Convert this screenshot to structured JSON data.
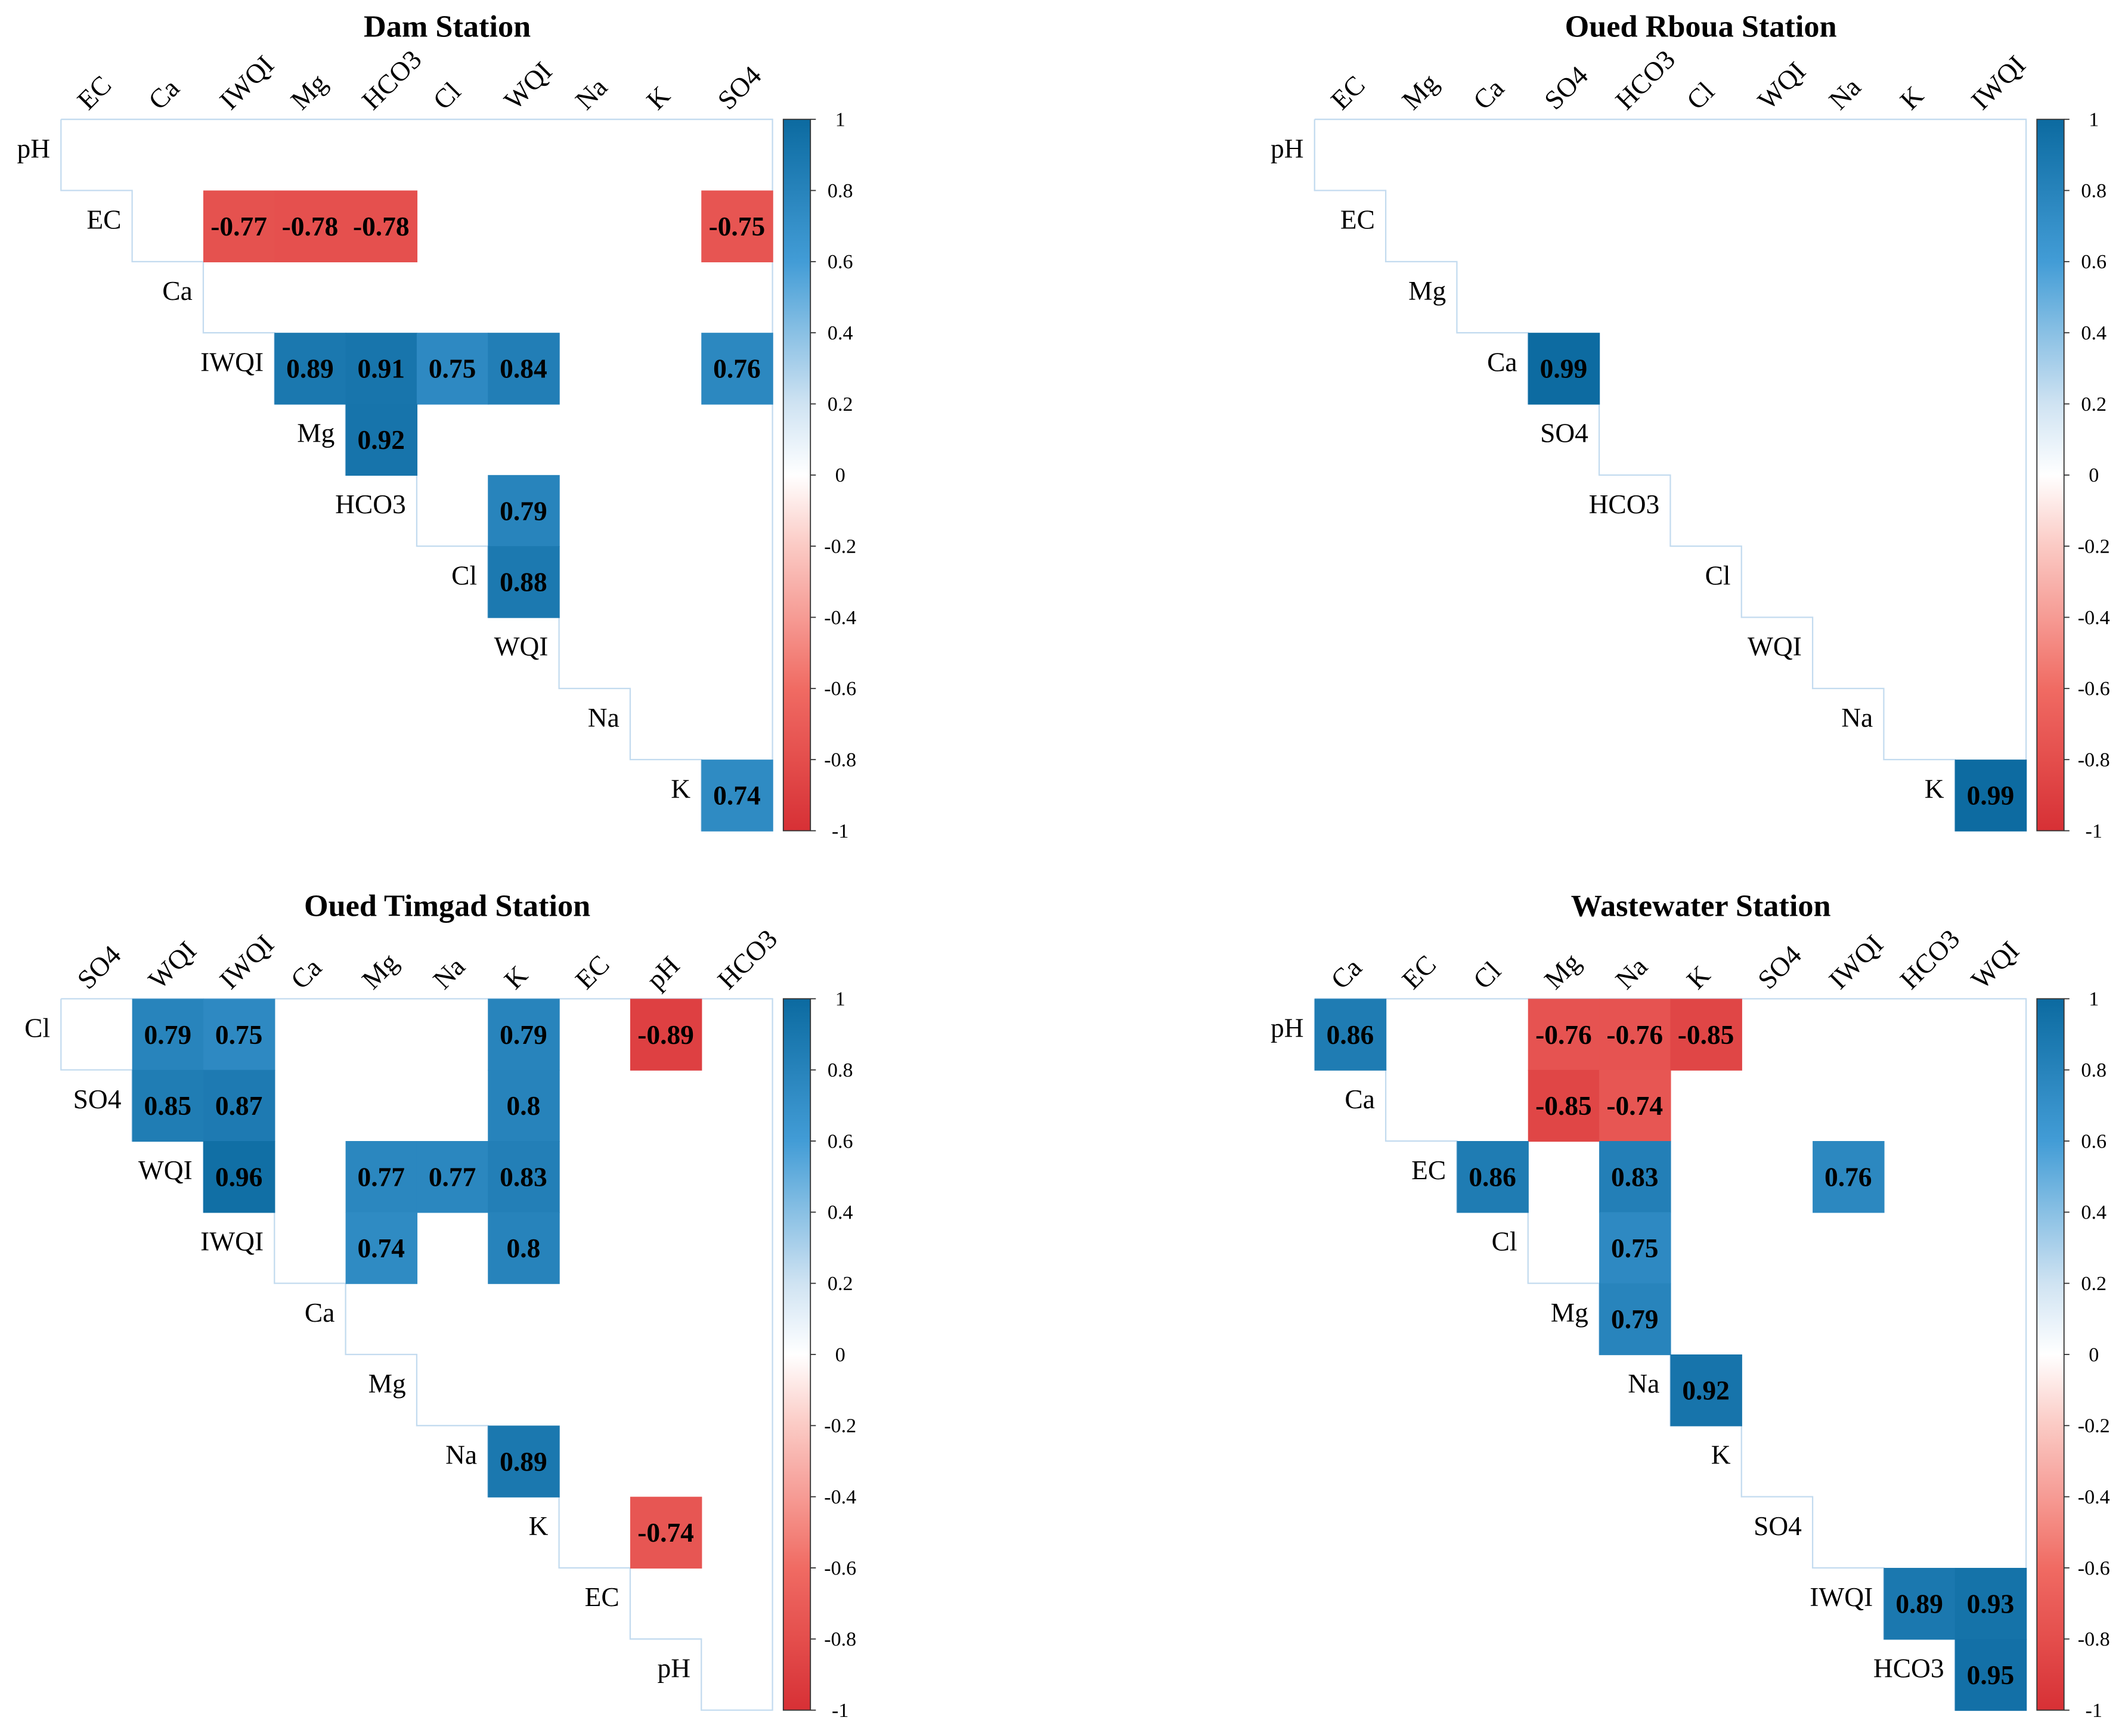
{
  "chart_data": [
    {
      "type": "heatmap",
      "title": "Dam Station",
      "row_labels": [
        "pH",
        "EC",
        "Ca",
        "IWQI",
        "Mg",
        "HCO3",
        "Cl",
        "WQI",
        "Na",
        "K"
      ],
      "col_labels": [
        "EC",
        "Ca",
        "IWQI",
        "Mg",
        "HCO3",
        "Cl",
        "WQI",
        "Na",
        "K",
        "SO4"
      ],
      "layout": "upper-triangle",
      "cells": [
        {
          "row": "EC",
          "col": "IWQI",
          "value": -0.77
        },
        {
          "row": "EC",
          "col": "Mg",
          "value": -0.78
        },
        {
          "row": "EC",
          "col": "HCO3",
          "value": -0.78
        },
        {
          "row": "EC",
          "col": "SO4",
          "value": -0.75
        },
        {
          "row": "IWQI",
          "col": "Mg",
          "value": 0.89
        },
        {
          "row": "IWQI",
          "col": "HCO3",
          "value": 0.91
        },
        {
          "row": "IWQI",
          "col": "Cl",
          "value": 0.75
        },
        {
          "row": "IWQI",
          "col": "WQI",
          "value": 0.84
        },
        {
          "row": "IWQI",
          "col": "SO4",
          "value": 0.76
        },
        {
          "row": "Mg",
          "col": "HCO3",
          "value": 0.92
        },
        {
          "row": "HCO3",
          "col": "WQI",
          "value": 0.79
        },
        {
          "row": "Cl",
          "col": "WQI",
          "value": 0.88
        },
        {
          "row": "K",
          "col": "SO4",
          "value": 0.74
        }
      ]
    },
    {
      "type": "heatmap",
      "title": "Oued Rboua Station",
      "row_labels": [
        "pH",
        "EC",
        "Mg",
        "Ca",
        "SO4",
        "HCO3",
        "Cl",
        "WQI",
        "Na",
        "K"
      ],
      "col_labels": [
        "EC",
        "Mg",
        "Ca",
        "SO4",
        "HCO3",
        "Cl",
        "WQI",
        "Na",
        "K",
        "IWQI"
      ],
      "layout": "upper-triangle",
      "cells": [
        {
          "row": "Ca",
          "col": "SO4",
          "value": 0.99
        },
        {
          "row": "K",
          "col": "IWQI",
          "value": 0.99
        }
      ]
    },
    {
      "type": "heatmap",
      "title": "Oued Timgad Station",
      "row_labels": [
        "Cl",
        "SO4",
        "WQI",
        "IWQI",
        "Ca",
        "Mg",
        "Na",
        "K",
        "EC",
        "pH"
      ],
      "col_labels": [
        "SO4",
        "WQI",
        "IWQI",
        "Ca",
        "Mg",
        "Na",
        "K",
        "EC",
        "pH",
        "HCO3"
      ],
      "layout": "upper-triangle",
      "cells": [
        {
          "row": "Cl",
          "col": "WQI",
          "value": 0.79
        },
        {
          "row": "Cl",
          "col": "IWQI",
          "value": 0.75
        },
        {
          "row": "Cl",
          "col": "K",
          "value": 0.79
        },
        {
          "row": "Cl",
          "col": "pH",
          "value": -0.89
        },
        {
          "row": "SO4",
          "col": "WQI",
          "value": 0.85
        },
        {
          "row": "SO4",
          "col": "IWQI",
          "value": 0.87
        },
        {
          "row": "SO4",
          "col": "K",
          "value": 0.8
        },
        {
          "row": "WQI",
          "col": "IWQI",
          "value": 0.96
        },
        {
          "row": "WQI",
          "col": "Mg",
          "value": 0.77
        },
        {
          "row": "WQI",
          "col": "Na",
          "value": 0.77
        },
        {
          "row": "WQI",
          "col": "K",
          "value": 0.83
        },
        {
          "row": "IWQI",
          "col": "Mg",
          "value": 0.74
        },
        {
          "row": "IWQI",
          "col": "K",
          "value": 0.8
        },
        {
          "row": "Na",
          "col": "K",
          "value": 0.89
        },
        {
          "row": "K",
          "col": "pH",
          "value": -0.74
        }
      ]
    },
    {
      "type": "heatmap",
      "title": "Wastewater Station",
      "row_labels": [
        "pH",
        "Ca",
        "EC",
        "Cl",
        "Mg",
        "Na",
        "K",
        "SO4",
        "IWQI",
        "HCO3"
      ],
      "col_labels": [
        "Ca",
        "EC",
        "Cl",
        "Mg",
        "Na",
        "K",
        "SO4",
        "IWQI",
        "HCO3",
        "WQI"
      ],
      "layout": "upper-triangle",
      "cells": [
        {
          "row": "pH",
          "col": "Ca",
          "value": 0.86
        },
        {
          "row": "pH",
          "col": "Mg",
          "value": -0.76
        },
        {
          "row": "pH",
          "col": "Na",
          "value": -0.76
        },
        {
          "row": "pH",
          "col": "K",
          "value": -0.85
        },
        {
          "row": "Ca",
          "col": "Mg",
          "value": -0.85
        },
        {
          "row": "Ca",
          "col": "Na",
          "value": -0.74
        },
        {
          "row": "EC",
          "col": "Cl",
          "value": 0.86
        },
        {
          "row": "EC",
          "col": "Na",
          "value": 0.83
        },
        {
          "row": "EC",
          "col": "IWQI",
          "value": 0.76
        },
        {
          "row": "Cl",
          "col": "Na",
          "value": 0.75
        },
        {
          "row": "Mg",
          "col": "Na",
          "value": 0.79
        },
        {
          "row": "Na",
          "col": "K",
          "value": 0.92
        },
        {
          "row": "IWQI",
          "col": "HCO3",
          "value": 0.89
        },
        {
          "row": "IWQI",
          "col": "WQI",
          "value": 0.93
        },
        {
          "row": "HCO3",
          "col": "WQI",
          "value": 0.95
        }
      ]
    }
  ],
  "colorbar": {
    "range": [
      -1,
      1
    ],
    "tick_labels": [
      "1",
      "0.8",
      "0.6",
      "0.4",
      "0.2",
      "0",
      "-0.2",
      "-0.4",
      "-0.6",
      "-0.8",
      "-1"
    ],
    "colors": {
      "negative": "#d73035",
      "zero": "#ffffff",
      "positive": "#0c6aa0"
    }
  }
}
